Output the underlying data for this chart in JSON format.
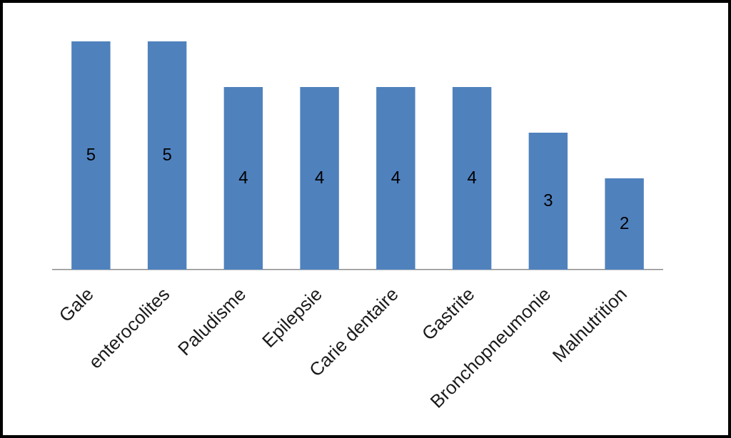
{
  "chart_data": {
    "type": "bar",
    "categories": [
      "Gale",
      "enterocolites",
      "Paludisme",
      "Epilepsie",
      "Carie dentaire",
      "Gastrite",
      "Bronchopneumonie",
      "Malnutrition"
    ],
    "values": [
      5,
      5,
      4,
      4,
      4,
      4,
      3,
      2
    ],
    "color": "#4f81bd",
    "data_labels": true
  }
}
